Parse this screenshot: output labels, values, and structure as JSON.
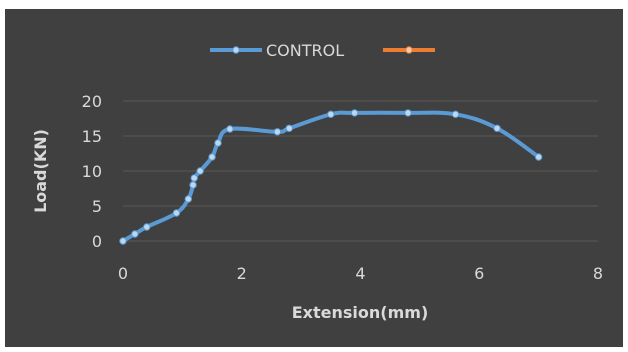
{
  "chart_data": {
    "type": "line",
    "title": "",
    "xlabel": "Extension(mm)",
    "ylabel": "Load(KN)",
    "xlim": [
      0,
      8
    ],
    "ylim": [
      0,
      20
    ],
    "xticks": [
      0,
      2,
      4,
      6,
      8
    ],
    "yticks": [
      0,
      5,
      10,
      15,
      20
    ],
    "grid": "horizontal",
    "legend": "top-center",
    "background": "#404040",
    "series": [
      {
        "name": "CONTROL",
        "color": "#5b9bd5",
        "smooth": true,
        "x": [
          0,
          0.2,
          0.4,
          0.9,
          1.1,
          1.18,
          1.2,
          1.3,
          1.5,
          1.6,
          1.8,
          2.6,
          2.8,
          3.5,
          3.9,
          4.8,
          5.6,
          6.3,
          7.0
        ],
        "y": [
          0,
          1,
          2,
          4,
          6,
          8,
          9,
          10,
          12,
          14,
          16,
          15.6,
          16.1,
          18.1,
          18.3,
          18.3,
          18.1,
          16.1,
          12
        ]
      },
      {
        "name": "",
        "color": "#ed7d31",
        "x": [],
        "y": []
      }
    ]
  }
}
